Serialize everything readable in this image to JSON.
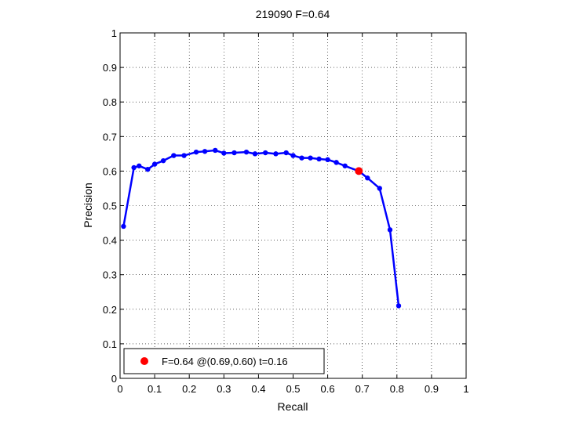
{
  "chart_data": {
    "type": "line",
    "title": "219090 F=0.64",
    "xlabel": "Recall",
    "ylabel": "Precision",
    "xlim": [
      0,
      1
    ],
    "ylim": [
      0,
      1
    ],
    "xticks": [
      "0",
      "0.1",
      "0.2",
      "0.3",
      "0.4",
      "0.5",
      "0.6",
      "0.7",
      "0.8",
      "0.9",
      "1"
    ],
    "yticks": [
      "0",
      "0.1",
      "0.2",
      "0.3",
      "0.4",
      "0.5",
      "0.6",
      "0.7",
      "0.8",
      "0.9",
      "1"
    ],
    "grid": true,
    "legend_position": "bottom-left",
    "series": [
      {
        "color": "#0000ff",
        "x": [
          0.01,
          0.04,
          0.055,
          0.08,
          0.1,
          0.125,
          0.155,
          0.185,
          0.22,
          0.245,
          0.275,
          0.3,
          0.33,
          0.365,
          0.39,
          0.42,
          0.45,
          0.48,
          0.5,
          0.525,
          0.55,
          0.575,
          0.6,
          0.625,
          0.65,
          0.69,
          0.715,
          0.75,
          0.78,
          0.805
        ],
        "y": [
          0.44,
          0.61,
          0.615,
          0.605,
          0.62,
          0.63,
          0.645,
          0.645,
          0.655,
          0.657,
          0.66,
          0.652,
          0.653,
          0.655,
          0.65,
          0.653,
          0.65,
          0.653,
          0.645,
          0.638,
          0.638,
          0.635,
          0.633,
          0.625,
          0.615,
          0.6,
          0.58,
          0.55,
          0.43,
          0.21
        ]
      }
    ],
    "highlight": {
      "name": "F=0.64 @(0.69,0.60) t=0.16",
      "x": 0.69,
      "y": 0.6,
      "color": "#ff0000"
    }
  }
}
